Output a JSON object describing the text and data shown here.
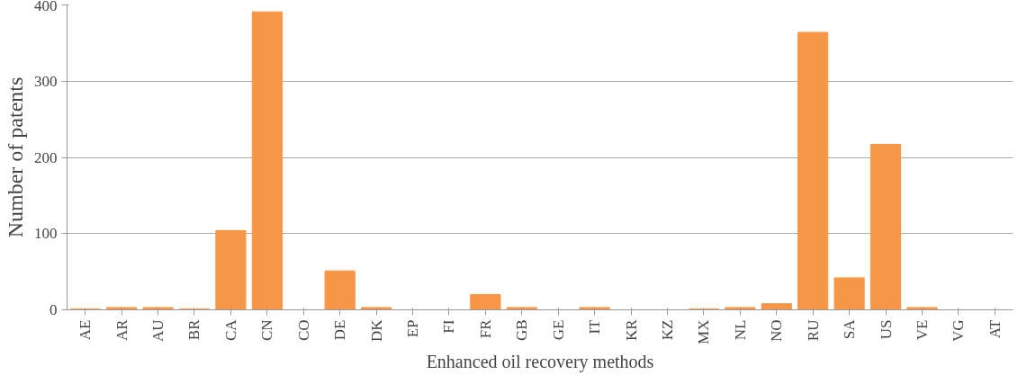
{
  "chart_data": {
    "type": "bar",
    "xlabel": "Enhanced oil recovery methods",
    "ylabel": "Number of patents",
    "categories": [
      "AE",
      "AR",
      "AU",
      "BR",
      "CA",
      "CN",
      "CO",
      "DE",
      "DK",
      "EP",
      "FI",
      "FR",
      "GB",
      "GE",
      "IT",
      "KR",
      "KZ",
      "MX",
      "NL",
      "NO",
      "RU",
      "SA",
      "US",
      "VE",
      "VG",
      "AT"
    ],
    "values": [
      1,
      3,
      3,
      1,
      104,
      391,
      0,
      51,
      3,
      0,
      0,
      20,
      3,
      0,
      3,
      0,
      0,
      1,
      3,
      8,
      364,
      42,
      217,
      3,
      0,
      0
    ],
    "color": "#f79646",
    "ylim": [
      0,
      400
    ],
    "yticks": [
      0,
      100,
      200,
      300,
      400
    ],
    "grid": "y"
  }
}
